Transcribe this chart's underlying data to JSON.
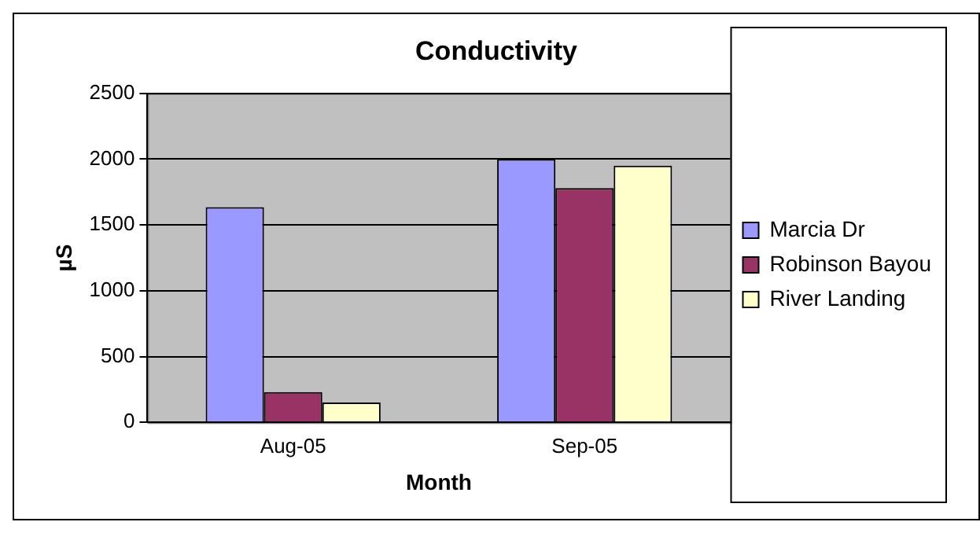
{
  "chart_data": {
    "type": "bar",
    "title": "Conductivity",
    "xlabel": "Month",
    "ylabel": "µS",
    "categories": [
      "Aug-05",
      "Sep-05"
    ],
    "series": [
      {
        "name": "Marcia Dr",
        "color": "#9999ff",
        "values": [
          1635,
          2000
        ]
      },
      {
        "name": "Robinson Bayou",
        "color": "#993366",
        "values": [
          230,
          1780
        ]
      },
      {
        "name": "River Landing",
        "color": "#ffffcc",
        "values": [
          150,
          1950
        ]
      }
    ],
    "ylim": [
      0,
      2500
    ],
    "yticks": [
      0,
      500,
      1000,
      1500,
      2000,
      2500
    ],
    "grid": "y",
    "legend": "right"
  }
}
